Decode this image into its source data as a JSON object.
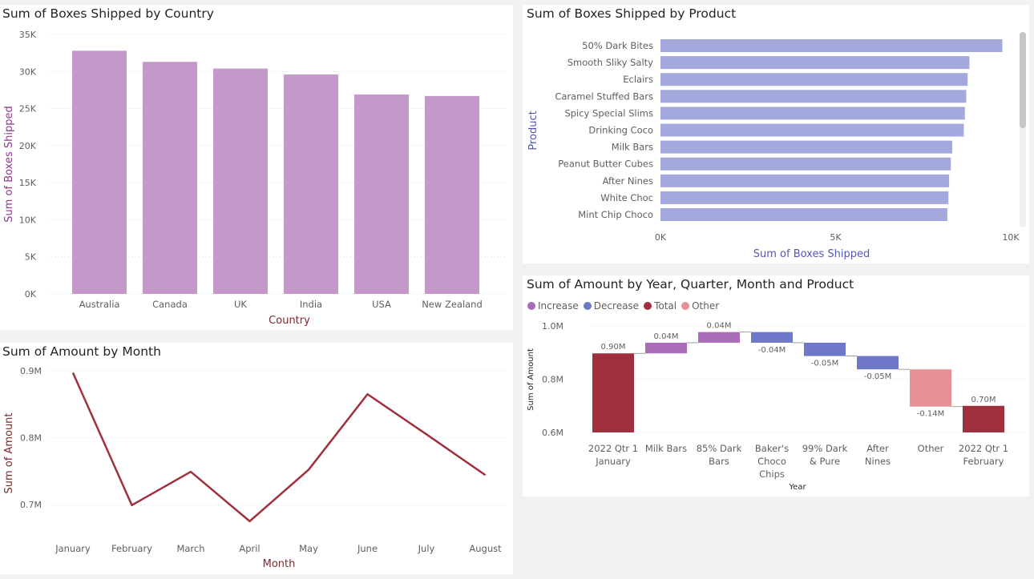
{
  "colors": {
    "country_bar": "#c499c9",
    "product_bar": "#a3a8dd",
    "line": "#a0303d",
    "increase": "#a86cb8",
    "decrease": "#6f77c8",
    "total": "#a0303d",
    "other": "#e79096",
    "grid": "#dcdcdc",
    "axis_text": "#605e5c",
    "country_axis_title": "#8e3a8e",
    "product_axis_title": "#5257b0",
    "line_axis_title": "#7a2a33"
  },
  "cards": {
    "country": {
      "title": "Sum of Boxes Shipped by Country"
    },
    "product": {
      "title": "Sum of Boxes Shipped by Product"
    },
    "month": {
      "title": "Sum of Amount by Month"
    },
    "waterfall": {
      "title": "Sum of Amount by Year, Quarter, Month and Product",
      "legend": [
        {
          "label": "Increase",
          "color": "#a86cb8"
        },
        {
          "label": "Decrease",
          "color": "#6f77c8"
        },
        {
          "label": "Total",
          "color": "#a0303d"
        },
        {
          "label": "Other",
          "color": "#e79096"
        }
      ]
    }
  },
  "chart_data": [
    {
      "type": "bar",
      "title": "Sum of Boxes Shipped by Country",
      "xlabel": "Country",
      "ylabel": "Sum of Boxes Shipped",
      "categories": [
        "Australia",
        "Canada",
        "UK",
        "India",
        "USA",
        "New Zealand"
      ],
      "values": [
        32800,
        31300,
        30400,
        29600,
        26900,
        26700
      ],
      "ylim": [
        0,
        35000
      ],
      "yticks": [
        "0K",
        "5K",
        "10K",
        "15K",
        "20K",
        "25K",
        "30K",
        "35K"
      ],
      "grid": true
    },
    {
      "type": "bar",
      "orientation": "horizontal",
      "title": "Sum of Boxes Shipped by Product",
      "xlabel": "Sum of Boxes Shipped",
      "ylabel": "Product",
      "categories": [
        "50% Dark Bites",
        "Smooth Sliky Salty",
        "Eclairs",
        "Caramel Stuffed Bars",
        "Spicy Special Slims",
        "Drinking Coco",
        "Milk Bars",
        "Peanut Butter Cubes",
        "After Nines",
        "White Choc",
        "Mint Chip Choco"
      ],
      "values": [
        9760,
        8820,
        8770,
        8730,
        8690,
        8660,
        8330,
        8290,
        8240,
        8220,
        8190
      ],
      "xlim": [
        0,
        10000
      ],
      "xticks": [
        "0K",
        "5K",
        "10K"
      ]
    },
    {
      "type": "line",
      "title": "Sum of Amount by Month",
      "xlabel": "Month",
      "ylabel": "Sum of Amount",
      "categories": [
        "January",
        "February",
        "March",
        "April",
        "May",
        "June",
        "July",
        "August"
      ],
      "values": [
        0.897,
        0.699,
        0.749,
        0.675,
        0.752,
        0.865,
        0.805,
        0.744
      ],
      "ylim": [
        0.6,
        0.9
      ],
      "yticks": [
        "0.7M",
        "0.8M",
        "0.9M"
      ],
      "grid": true
    },
    {
      "type": "waterfall",
      "title": "Sum of Amount by Year, Quarter, Month and Product",
      "xlabel": "Year",
      "ylabel": "Sum of Amount",
      "ylim": [
        0.6,
        1.0
      ],
      "yticks": [
        "0.6M",
        "0.8M",
        "1.0M"
      ],
      "steps": [
        {
          "label": "2022 Qtr 1 January",
          "kind": "total",
          "value": 0.897,
          "text": "0.90M"
        },
        {
          "label": "Milk Bars",
          "kind": "increase",
          "value": 0.04,
          "text": "0.04M"
        },
        {
          "label": "85% Dark Bars",
          "kind": "increase",
          "value": 0.04,
          "text": "0.04M"
        },
        {
          "label": "Baker's Choco Chips",
          "kind": "decrease",
          "value": -0.04,
          "text": "-0.04M"
        },
        {
          "label": "99% Dark & Pure",
          "kind": "decrease",
          "value": -0.05,
          "text": "-0.05M"
        },
        {
          "label": "After Nines",
          "kind": "decrease",
          "value": -0.05,
          "text": "-0.05M"
        },
        {
          "label": "Other",
          "kind": "other",
          "value": -0.14,
          "text": "-0.14M"
        },
        {
          "label": "2022 Qtr 1 February",
          "kind": "total",
          "value": 0.7,
          "text": "0.70M"
        }
      ],
      "legend": [
        "Increase",
        "Decrease",
        "Total",
        "Other"
      ]
    }
  ]
}
